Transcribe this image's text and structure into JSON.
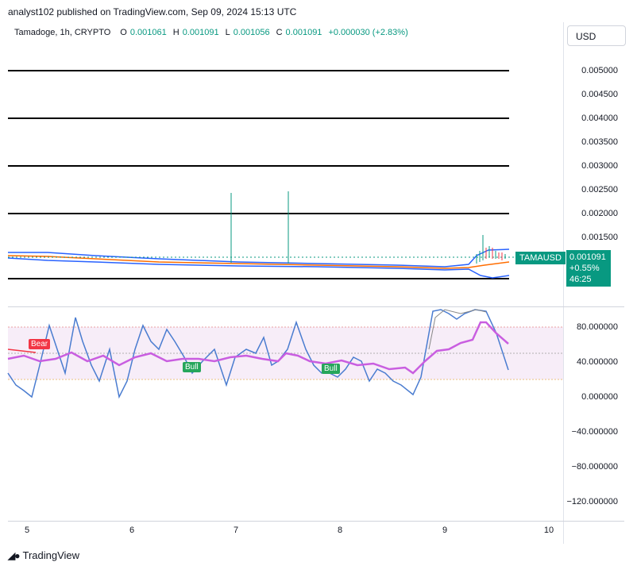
{
  "header": {
    "published": "analyst102 published on TradingView.com, Sep 09, 2024 15:13 UTC"
  },
  "legend": {
    "symbol": "Tamadoge, 1h, CRYPTO",
    "open_label": "O",
    "open": "0.001061",
    "high_label": "H",
    "high": "0.001091",
    "low_label": "L",
    "low": "0.001056",
    "close_label": "C",
    "close": "0.001091",
    "change": "+0.000030 (+2.83%)"
  },
  "currency": "USD",
  "price_axis": [
    "0.005000",
    "0.004500",
    "0.004000",
    "0.003500",
    "0.003000",
    "0.002500",
    "0.002000",
    "0.001500"
  ],
  "osc_axis": [
    "80.000000",
    "40.000000",
    "0.000000",
    "−40.000000",
    "−80.000000",
    "−120.000000"
  ],
  "time_axis": [
    "5",
    "6",
    "7",
    "8",
    "9",
    "10"
  ],
  "symbol_tag": "TAMAUSD",
  "last_price": {
    "price": "0.001091",
    "change": "+0.55%",
    "countdown": "46:25"
  },
  "labels": {
    "bear": "Bear",
    "bull1": "Bull",
    "bull2": "Bull"
  },
  "footer": {
    "brand": "TradingView"
  },
  "colors": {
    "up": "#089981",
    "down": "#f23645",
    "band": "#2962ff",
    "ma": "#ff6d00",
    "rsi": "#4a7cd0",
    "signal": "#c95ee0"
  }
}
